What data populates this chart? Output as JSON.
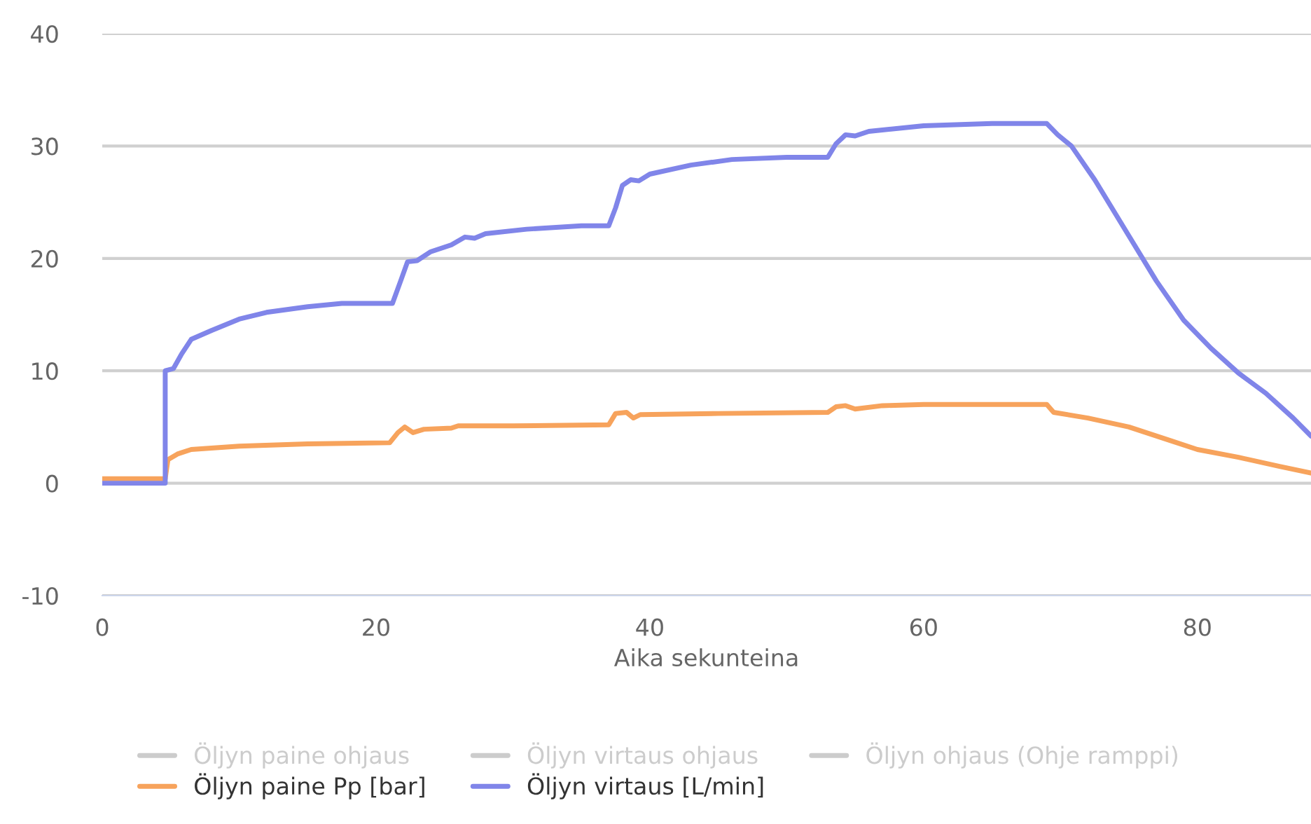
{
  "chart_data": {
    "type": "line",
    "xlabel": "Aika sekunteina",
    "xlim": [
      0,
      88.3
    ],
    "xticks": [
      0,
      20,
      40,
      60,
      80
    ],
    "ylim": [
      -10,
      40
    ],
    "yticks": [
      -10,
      0,
      10,
      20,
      30,
      40
    ],
    "grid": "y",
    "legend": "bottom",
    "marker": "none",
    "line_style": "solid",
    "series": [
      {
        "name": "Öljyn paine ohjaus",
        "color": "#cccccc"
      },
      {
        "name": "Öljyn virtaus ohjaus",
        "color": "#cccccc"
      },
      {
        "name": "Öljyn ohjaus (Ohje ramppi)",
        "color": "#cccccc"
      },
      {
        "name": "Öljyn paine Pp [bar]",
        "color": "#f7a35c",
        "x": [
          0,
          4.6,
          4.8,
          5.5,
          6.5,
          10,
          15,
          21,
          21.6,
          22.1,
          22.7,
          23.5,
          25.5,
          26,
          30,
          37,
          37.5,
          38.3,
          38.8,
          39.3,
          45,
          53,
          53.6,
          54.3,
          55,
          57,
          60,
          69,
          69.5,
          72,
          75,
          78,
          80,
          83,
          86,
          88.3
        ],
        "values": [
          0.4,
          0.4,
          2.1,
          2.6,
          3.0,
          3.3,
          3.5,
          3.6,
          4.5,
          5.0,
          4.5,
          4.8,
          4.9,
          5.1,
          5.1,
          5.2,
          6.2,
          6.3,
          5.8,
          6.1,
          6.2,
          6.3,
          6.8,
          6.9,
          6.6,
          6.9,
          7.0,
          7.0,
          6.3,
          5.8,
          5.0,
          3.8,
          3.0,
          2.3,
          1.5,
          0.9
        ]
      },
      {
        "name": "Öljyn virtaus [L/min]",
        "color": "#8085e9",
        "x": [
          0,
          4.6,
          4.6,
          5.2,
          5.8,
          6.5,
          8,
          10,
          12,
          15,
          17.5,
          21.2,
          21.8,
          22.3,
          23,
          24,
          25.5,
          26.5,
          27.2,
          28,
          31,
          35,
          37,
          37.5,
          38,
          38.6,
          39.2,
          40,
          43,
          46,
          50,
          53,
          53.6,
          54.3,
          55,
          56,
          60,
          65,
          69,
          69.8,
          70.8,
          72.5,
          75,
          77,
          79,
          81,
          83,
          85,
          87,
          88.3
        ],
        "values": [
          0,
          0,
          10,
          10.2,
          11.5,
          12.8,
          13.6,
          14.6,
          15.2,
          15.7,
          16,
          16,
          18,
          19.7,
          19.8,
          20.6,
          21.2,
          21.9,
          21.8,
          22.2,
          22.6,
          22.9,
          22.9,
          24.5,
          26.5,
          27,
          26.9,
          27.5,
          28.3,
          28.8,
          29,
          29,
          30.2,
          31,
          30.9,
          31.3,
          31.8,
          32,
          32,
          31,
          30,
          27,
          22,
          18,
          14.5,
          12,
          9.8,
          8,
          5.8,
          4.2
        ]
      }
    ]
  }
}
